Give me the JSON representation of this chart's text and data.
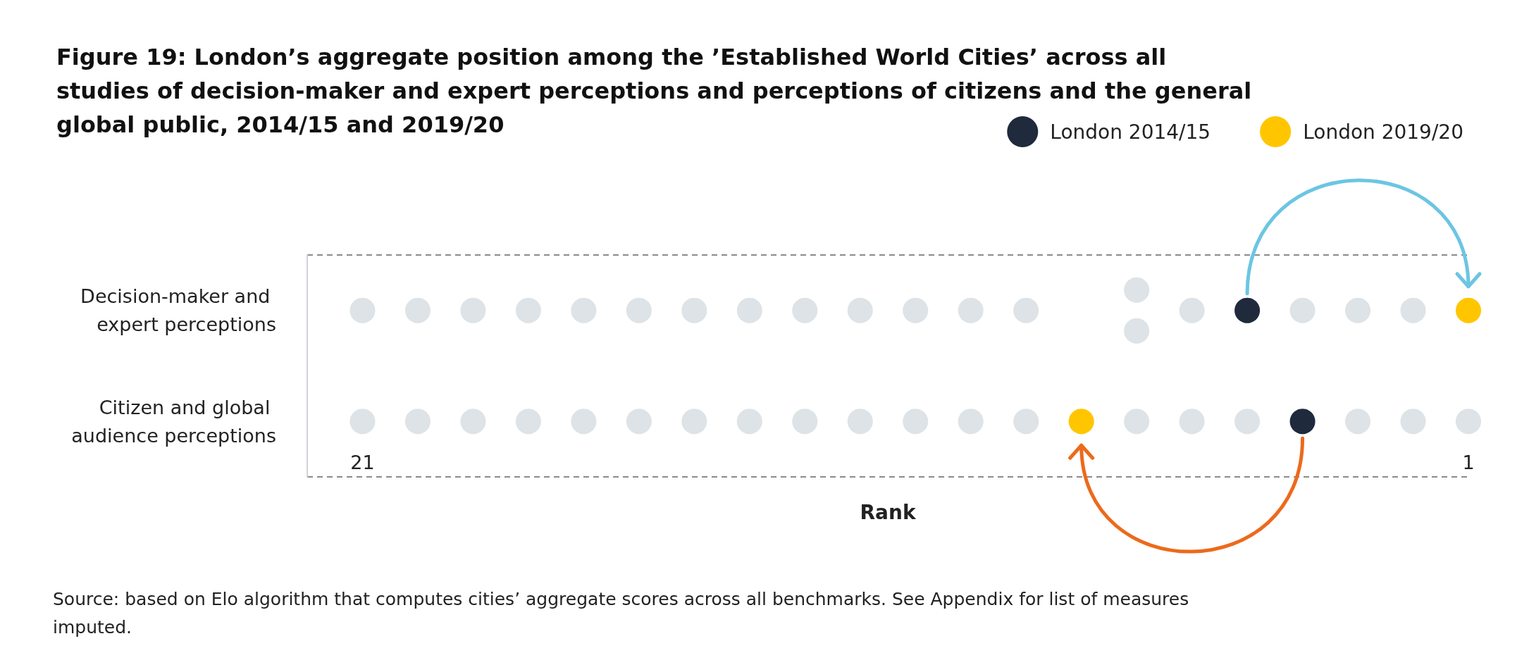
{
  "chart_data": {
    "type": "scatter",
    "orientation": "horizontal",
    "title": "Figure 19: London’s aggregate position among the ’Established World Cities’ across all studies of decision-maker and expert perceptions and perceptions of citizens and the general global public, 2014/15 and 2019/20",
    "xlabel": "Rank",
    "categories": [
      "Decision-maker and expert perceptions",
      "Citizen and global audience perceptions"
    ],
    "xlim": [
      22,
      1
    ],
    "xticks": [
      21,
      1
    ],
    "grid": "y",
    "legend": "top right",
    "marker": "circle",
    "series": [
      {
        "color": "#dde3e6",
        "values": [
          21,
          21
        ]
      },
      {
        "color": "#dde3e6",
        "values": [
          20,
          20
        ]
      },
      {
        "color": "#dde3e6",
        "values": [
          19,
          19
        ]
      },
      {
        "color": "#dde3e6",
        "values": [
          18,
          18
        ]
      },
      {
        "color": "#dde3e6",
        "values": [
          17,
          17
        ]
      },
      {
        "color": "#dde3e6",
        "values": [
          16,
          16
        ]
      },
      {
        "color": "#dde3e6",
        "values": [
          15,
          15
        ]
      },
      {
        "color": "#dde3e6",
        "values": [
          14,
          14
        ]
      },
      {
        "color": "#dde3e6",
        "values": [
          13,
          13
        ]
      },
      {
        "color": "#dde3e6",
        "values": [
          12,
          12
        ]
      },
      {
        "color": "#dde3e6",
        "values": [
          11,
          11
        ]
      },
      {
        "color": "#dde3e6",
        "values": [
          10,
          10
        ]
      },
      {
        "color": "#dde3e6",
        "values": [
          9,
          9
        ]
      },
      {
        "color": "#dde3e6",
        "values": [
          7,
          7
        ]
      },
      {
        "color": "#dde3e6",
        "values": [
          7,
          6
        ]
      },
      {
        "color": "#dde3e6",
        "values": [
          6,
          5
        ]
      },
      {
        "color": "#dde3e6",
        "values": [
          4,
          3
        ]
      },
      {
        "color": "#dde3e6",
        "values": [
          3,
          2
        ]
      },
      {
        "color": "#dde3e6",
        "values": [
          2,
          1
        ]
      },
      {
        "name": "London 2014/15",
        "color": "#1f2a3c",
        "values": [
          5,
          4
        ]
      },
      {
        "name": "London 2019/20",
        "color": "#ffc600",
        "values": [
          1,
          8
        ]
      }
    ],
    "annotations": [
      "Source: based on Elo algorithm that computes cities’ aggregate scores across all benchmarks. See Appendix for list of measures imputed."
    ]
  }
}
